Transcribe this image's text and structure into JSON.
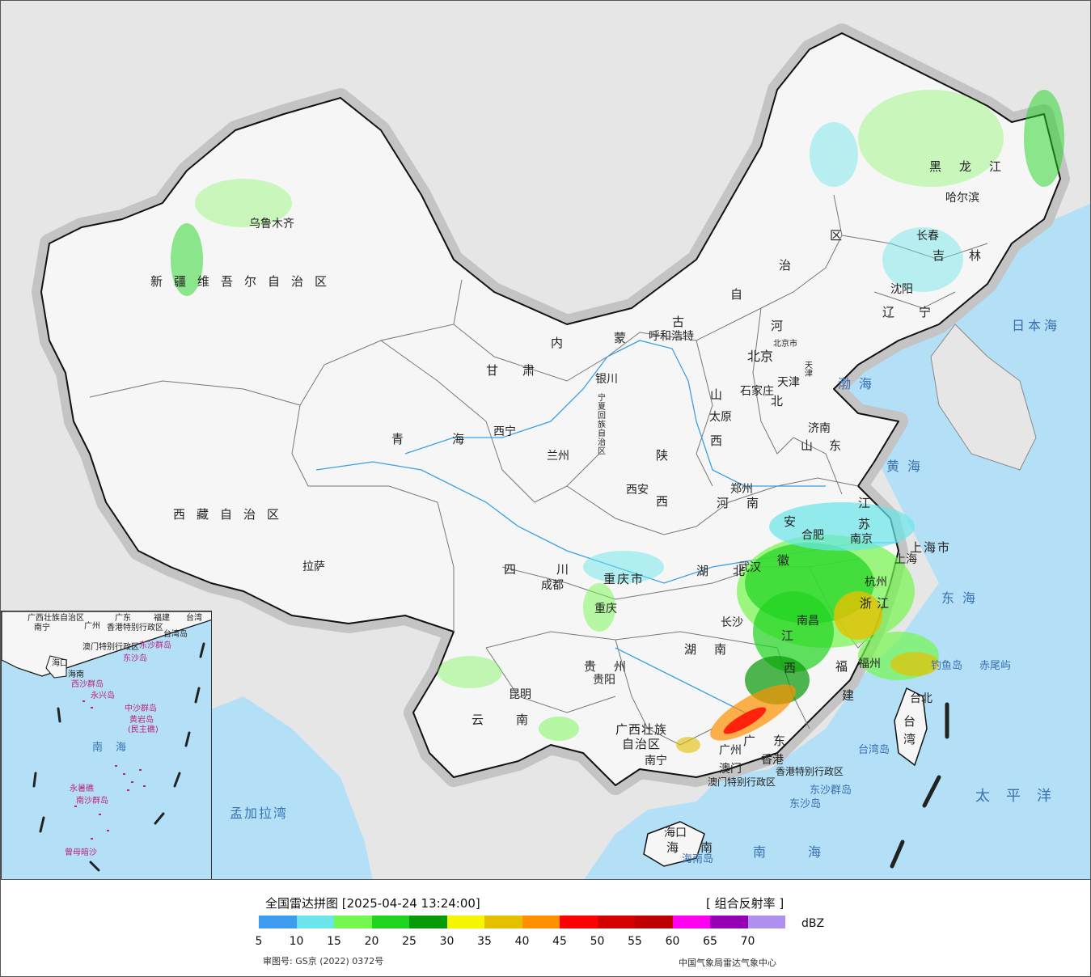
{
  "map": {
    "regions": [
      {
        "id": "xinjiang",
        "label": "新疆维吾尔自治区"
      },
      {
        "id": "xizang",
        "label": "西藏自治区"
      },
      {
        "id": "qinghai",
        "label": "青海"
      },
      {
        "id": "gansu",
        "label": "甘肃"
      },
      {
        "id": "neimenggu-1",
        "label": "内"
      },
      {
        "id": "neimenggu-2",
        "label": "蒙"
      },
      {
        "id": "neimenggu-3",
        "label": "古"
      },
      {
        "id": "neimenggu-4",
        "label": "自"
      },
      {
        "id": "neimenggu-5",
        "label": "治"
      },
      {
        "id": "neimenggu-6",
        "label": "区"
      },
      {
        "id": "heilongjiang",
        "label": "黑龙江"
      },
      {
        "id": "jilin",
        "label": "吉林"
      },
      {
        "id": "liaoning",
        "label": "辽宁"
      },
      {
        "id": "hebei-1",
        "label": "河"
      },
      {
        "id": "hebei-2",
        "label": "北"
      },
      {
        "id": "shanxi-1",
        "label": "山"
      },
      {
        "id": "shanxi-2",
        "label": "西"
      },
      {
        "id": "shandong",
        "label": "山东"
      },
      {
        "id": "henan",
        "label": "河南"
      },
      {
        "id": "shaanxi-1",
        "label": "陕"
      },
      {
        "id": "shaanxi-2",
        "label": "西"
      },
      {
        "id": "sichuan",
        "label": "四川"
      },
      {
        "id": "chongqing",
        "label": "重庆市"
      },
      {
        "id": "hubei",
        "label": "湖北"
      },
      {
        "id": "hunan",
        "label": "湖南"
      },
      {
        "id": "guizhou",
        "label": "贵州"
      },
      {
        "id": "yunnan",
        "label": "云南"
      },
      {
        "id": "guangxi-1",
        "label": "广西壮族"
      },
      {
        "id": "guangxi-2",
        "label": "自治区"
      },
      {
        "id": "guangdong",
        "label": "广东"
      },
      {
        "id": "jiangxi-1",
        "label": "江"
      },
      {
        "id": "jiangxi-2",
        "label": "西"
      },
      {
        "id": "fujian-1",
        "label": "福"
      },
      {
        "id": "fujian-2",
        "label": "建"
      },
      {
        "id": "zhejiang",
        "label": "浙江"
      },
      {
        "id": "anhui-1",
        "label": "安"
      },
      {
        "id": "anhui-2",
        "label": "徽"
      },
      {
        "id": "jiangsu-1",
        "label": "江"
      },
      {
        "id": "jiangsu-2",
        "label": "苏"
      },
      {
        "id": "shanghai",
        "label": "上海市"
      },
      {
        "id": "taiwan",
        "label": "台湾"
      },
      {
        "id": "hainan-1",
        "label": "海"
      },
      {
        "id": "hainan-2",
        "label": "南"
      },
      {
        "id": "ningxia",
        "label": "宁夏回族自治区"
      },
      {
        "id": "hongkong",
        "label": "香港特别行政区"
      },
      {
        "id": "macau",
        "label": "澳门特别行政区"
      }
    ],
    "cities": [
      {
        "id": "urumqi",
        "label": "乌鲁木齐"
      },
      {
        "id": "lhasa",
        "label": "拉萨"
      },
      {
        "id": "xining",
        "label": "西宁"
      },
      {
        "id": "lanzhou",
        "label": "兰州"
      },
      {
        "id": "yinchuan",
        "label": "银川"
      },
      {
        "id": "hohhot",
        "label": "呼和浩特"
      },
      {
        "id": "beijing",
        "label": "北京"
      },
      {
        "id": "beijing-city",
        "label": "北京市"
      },
      {
        "id": "tianjin",
        "label": "天津"
      },
      {
        "id": "tianjin-city",
        "label": "天津"
      },
      {
        "id": "shijiazhuang",
        "label": "石家庄"
      },
      {
        "id": "taiyuan",
        "label": "太原"
      },
      {
        "id": "jinan",
        "label": "济南"
      },
      {
        "id": "zhengzhou",
        "label": "郑州"
      },
      {
        "id": "xian",
        "label": "西安"
      },
      {
        "id": "chengdu",
        "label": "成都"
      },
      {
        "id": "chongqing-city",
        "label": "重庆"
      },
      {
        "id": "wuhan",
        "label": "武汉"
      },
      {
        "id": "changsha",
        "label": "长沙"
      },
      {
        "id": "guiyang",
        "label": "贵阳"
      },
      {
        "id": "kunming",
        "label": "昆明"
      },
      {
        "id": "nanning",
        "label": "南宁"
      },
      {
        "id": "guangzhou",
        "label": "广州"
      },
      {
        "id": "nanchang",
        "label": "南昌"
      },
      {
        "id": "fuzhou",
        "label": "福州"
      },
      {
        "id": "hangzhou",
        "label": "杭州"
      },
      {
        "id": "hefei",
        "label": "合肥"
      },
      {
        "id": "nanjing",
        "label": "南京"
      },
      {
        "id": "shanghai-city",
        "label": "上海"
      },
      {
        "id": "taibei",
        "label": "台北"
      },
      {
        "id": "haikou",
        "label": "海口"
      },
      {
        "id": "harbin",
        "label": "哈尔滨"
      },
      {
        "id": "changchun",
        "label": "长春"
      },
      {
        "id": "shenyang",
        "label": "沈阳"
      },
      {
        "id": "hongkong-city",
        "label": "香港"
      },
      {
        "id": "macau-city",
        "label": "澳门"
      }
    ],
    "seas": [
      {
        "id": "japan-sea",
        "label": "日本海"
      },
      {
        "id": "bohai",
        "label": "渤海"
      },
      {
        "id": "yellow-sea",
        "label": "黄海"
      },
      {
        "id": "east-sea",
        "label": "东海"
      },
      {
        "id": "pacific",
        "label": "太平洋"
      },
      {
        "id": "south-sea",
        "label": "南海"
      },
      {
        "id": "bay-of-bengal",
        "label": "孟加拉湾"
      }
    ],
    "islands": [
      {
        "id": "diaoyu",
        "label": "钓鱼岛"
      },
      {
        "id": "chiwei",
        "label": "赤尾屿"
      },
      {
        "id": "taiwan-island",
        "label": "台湾岛"
      },
      {
        "id": "dongsha-qundao",
        "label": "东沙群岛"
      },
      {
        "id": "dongsha-dao",
        "label": "东沙岛"
      },
      {
        "id": "hainan-island",
        "label": "海南岛"
      }
    ],
    "inset": {
      "labels": [
        {
          "id": "in-guangxi",
          "label": "广西壮族自治区"
        },
        {
          "id": "in-guangdong",
          "label": "广东"
        },
        {
          "id": "in-fujian",
          "label": "福建"
        },
        {
          "id": "in-taiwan",
          "label": "台湾"
        },
        {
          "id": "in-nanning",
          "label": "南宁"
        },
        {
          "id": "in-guangzhou",
          "label": "广州"
        },
        {
          "id": "in-hk",
          "label": "香港特别行政区"
        },
        {
          "id": "in-macau",
          "label": "澳门特别行政区"
        },
        {
          "id": "in-taiwan-island",
          "label": "台湾岛"
        },
        {
          "id": "in-dongsha",
          "label": "东沙群岛"
        },
        {
          "id": "in-dongshadao",
          "label": "东沙岛"
        },
        {
          "id": "in-haikou",
          "label": "海口"
        },
        {
          "id": "in-hainan",
          "label": "海南"
        },
        {
          "id": "in-xisha",
          "label": "西沙群岛"
        },
        {
          "id": "in-yongxing",
          "label": "永兴岛"
        },
        {
          "id": "in-zhongsha",
          "label": "中沙群岛"
        },
        {
          "id": "in-huangyan",
          "label": "黄岩岛"
        },
        {
          "id": "in-minzhu",
          "label": "(民主礁)"
        },
        {
          "id": "in-nansha",
          "label": "南沙群岛"
        },
        {
          "id": "in-yongshu",
          "label": "永暑礁"
        },
        {
          "id": "in-zengmu",
          "label": "曾母暗沙"
        },
        {
          "id": "in-nanhai",
          "label": "南海"
        }
      ]
    }
  },
  "legend": {
    "title": "全国雷达拼图 [2025-04-24 13:24:00]",
    "product": "[ 组合反射率 ]",
    "unit": "dBZ",
    "colors": [
      "#3d9bf0",
      "#6ae6ea",
      "#73f74d",
      "#1fd41f",
      "#079a07",
      "#f8f500",
      "#e5c000",
      "#ff9000",
      "#ff0000",
      "#d50000",
      "#c00000",
      "#ff00f0",
      "#9600b4",
      "#ae90ee"
    ],
    "ticks": [
      "5",
      "10",
      "15",
      "20",
      "25",
      "30",
      "35",
      "40",
      "45",
      "50",
      "55",
      "60",
      "65",
      "70"
    ],
    "approval": "审图号: GS京 (2022) 0372号",
    "source": "中国气象局雷达气象中心"
  }
}
